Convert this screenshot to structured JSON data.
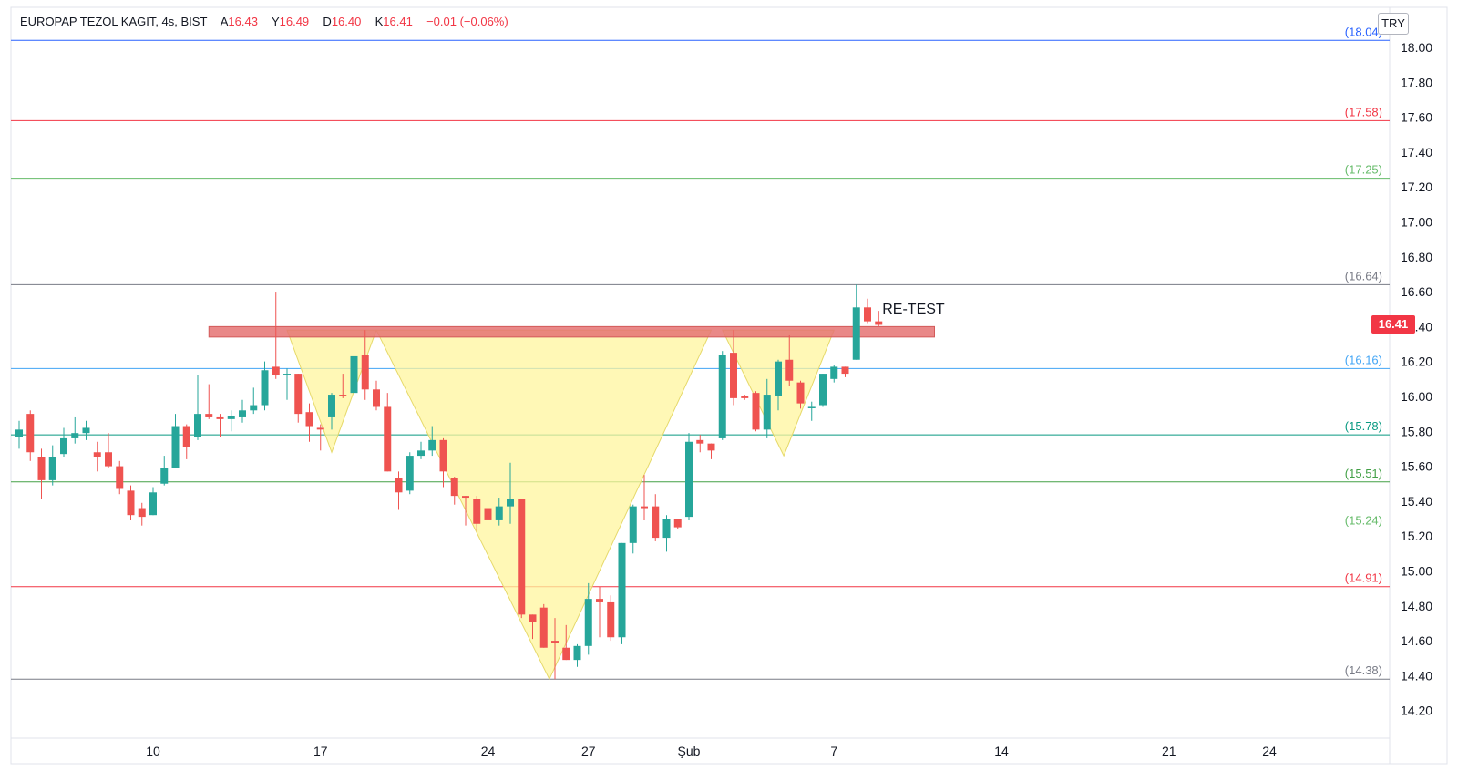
{
  "header": {
    "symbol": "EUROPAP TEZOL KAGIT, 4s, BIST",
    "open_label": "A",
    "open": "16.43",
    "high_label": "Y",
    "high": "16.49",
    "low_label": "D",
    "low": "16.40",
    "close_label": "K",
    "close": "16.41",
    "change": "−0.01 (−0.06%)"
  },
  "currency": "TRY",
  "last_price": "16.41",
  "colors": {
    "up": "#26a69a",
    "down": "#ef5350",
    "pattern_fill": "#fff59d",
    "resistance_band": "#e57373"
  },
  "chart_data": {
    "type": "candlestick",
    "ylim": [
      14.12,
      18.24
    ],
    "y_ticks": [
      "14.20",
      "14.40",
      "14.60",
      "14.80",
      "15.00",
      "15.20",
      "15.40",
      "15.60",
      "15.80",
      "16.00",
      "16.20",
      "16.40",
      "16.60",
      "16.80",
      "17.00",
      "17.20",
      "17.40",
      "17.60",
      "17.80",
      "18.00"
    ],
    "x_ticks": [
      {
        "label": "10",
        "index": 12
      },
      {
        "label": "17",
        "index": 27
      },
      {
        "label": "24",
        "index": 42
      },
      {
        "label": "27",
        "index": 51
      },
      {
        "label": "Şub",
        "index": 60
      },
      {
        "label": "7",
        "index": 73
      },
      {
        "label": "14",
        "index": 88
      },
      {
        "label": "21",
        "index": 103
      },
      {
        "label": "24",
        "index": 112
      }
    ],
    "levels": [
      {
        "value": 18.04,
        "label": "(18.04)",
        "color": "#2962ff"
      },
      {
        "value": 17.58,
        "label": "(17.58)",
        "color": "#f23645"
      },
      {
        "value": 17.25,
        "label": "(17.25)",
        "color": "#66bb6a"
      },
      {
        "value": 16.64,
        "label": "(16.64)",
        "color": "#787b86"
      },
      {
        "value": 16.16,
        "label": "(16.16)",
        "color": "#42a5f5"
      },
      {
        "value": 15.78,
        "label": "(15.78)",
        "color": "#089981"
      },
      {
        "value": 15.51,
        "label": "(15.51)",
        "color": "#43a047"
      },
      {
        "value": 15.24,
        "label": "(15.24)",
        "color": "#66bb6a"
      },
      {
        "value": 14.91,
        "label": "(14.91)",
        "color": "#f23645"
      },
      {
        "value": 14.38,
        "label": "(14.38)",
        "color": "#787b86"
      }
    ],
    "resistance_zone": {
      "from_index": 17,
      "to_index": 82,
      "low": 16.34,
      "high": 16.4
    },
    "pattern_triangles": [
      {
        "points": [
          [
            24,
            16.38
          ],
          [
            28,
            15.68
          ],
          [
            32,
            16.38
          ]
        ]
      },
      {
        "points": [
          [
            32,
            16.38
          ],
          [
            47.5,
            14.38
          ],
          [
            62,
            16.38
          ]
        ]
      },
      {
        "points": [
          [
            63,
            16.38
          ],
          [
            68.5,
            15.66
          ],
          [
            73,
            16.38
          ]
        ]
      }
    ],
    "annotations": [
      {
        "text": "RE-TEST",
        "index": 77,
        "value": 16.5
      }
    ],
    "candles": [
      {
        "o": 15.77,
        "h": 15.86,
        "l": 15.7,
        "c": 15.81
      },
      {
        "o": 15.9,
        "h": 15.92,
        "l": 15.63,
        "c": 15.68
      },
      {
        "o": 15.65,
        "h": 15.7,
        "l": 15.41,
        "c": 15.52
      },
      {
        "o": 15.52,
        "h": 15.72,
        "l": 15.49,
        "c": 15.65
      },
      {
        "o": 15.67,
        "h": 15.82,
        "l": 15.65,
        "c": 15.76
      },
      {
        "o": 15.76,
        "h": 15.88,
        "l": 15.73,
        "c": 15.79
      },
      {
        "o": 15.79,
        "h": 15.86,
        "l": 15.75,
        "c": 15.82
      },
      {
        "o": 15.68,
        "h": 15.74,
        "l": 15.57,
        "c": 15.65
      },
      {
        "o": 15.68,
        "h": 15.79,
        "l": 15.59,
        "c": 15.6
      },
      {
        "o": 15.6,
        "h": 15.63,
        "l": 15.44,
        "c": 15.47
      },
      {
        "o": 15.46,
        "h": 15.49,
        "l": 15.29,
        "c": 15.32
      },
      {
        "o": 15.36,
        "h": 15.39,
        "l": 15.26,
        "c": 15.31
      },
      {
        "o": 15.32,
        "h": 15.48,
        "l": 15.32,
        "c": 15.45
      },
      {
        "o": 15.5,
        "h": 15.66,
        "l": 15.49,
        "c": 15.59
      },
      {
        "o": 15.59,
        "h": 15.9,
        "l": 15.59,
        "c": 15.83
      },
      {
        "o": 15.83,
        "h": 15.84,
        "l": 15.64,
        "c": 15.71
      },
      {
        "o": 15.77,
        "h": 16.12,
        "l": 15.75,
        "c": 15.9
      },
      {
        "o": 15.9,
        "h": 16.07,
        "l": 15.87,
        "c": 15.88
      },
      {
        "o": 15.88,
        "h": 15.9,
        "l": 15.77,
        "c": 15.87
      },
      {
        "o": 15.87,
        "h": 15.92,
        "l": 15.8,
        "c": 15.89
      },
      {
        "o": 15.88,
        "h": 15.98,
        "l": 15.85,
        "c": 15.92
      },
      {
        "o": 15.92,
        "h": 16.05,
        "l": 15.9,
        "c": 15.95
      },
      {
        "o": 15.95,
        "h": 16.2,
        "l": 15.92,
        "c": 16.15
      },
      {
        "o": 16.17,
        "h": 16.6,
        "l": 16.1,
        "c": 16.12
      },
      {
        "o": 16.13,
        "h": 16.16,
        "l": 15.98,
        "c": 16.13
      },
      {
        "o": 16.13,
        "h": 16.13,
        "l": 15.85,
        "c": 15.9
      },
      {
        "o": 15.91,
        "h": 15.96,
        "l": 15.74,
        "c": 15.83
      },
      {
        "o": 15.82,
        "h": 15.84,
        "l": 15.69,
        "c": 15.81
      },
      {
        "o": 15.88,
        "h": 16.02,
        "l": 15.81,
        "c": 16.01
      },
      {
        "o": 16.01,
        "h": 16.13,
        "l": 15.99,
        "c": 16.0
      },
      {
        "o": 16.02,
        "h": 16.33,
        "l": 16.0,
        "c": 16.23
      },
      {
        "o": 16.24,
        "h": 16.38,
        "l": 15.98,
        "c": 16.04
      },
      {
        "o": 16.04,
        "h": 16.09,
        "l": 15.92,
        "c": 15.94
      },
      {
        "o": 15.94,
        "h": 16.02,
        "l": 15.57,
        "c": 15.57
      },
      {
        "o": 15.53,
        "h": 15.57,
        "l": 15.35,
        "c": 15.45
      },
      {
        "o": 15.46,
        "h": 15.68,
        "l": 15.44,
        "c": 15.66
      },
      {
        "o": 15.66,
        "h": 15.74,
        "l": 15.64,
        "c": 15.69
      },
      {
        "o": 15.69,
        "h": 15.83,
        "l": 15.66,
        "c": 15.75
      },
      {
        "o": 15.75,
        "h": 15.76,
        "l": 15.48,
        "c": 15.57
      },
      {
        "o": 15.53,
        "h": 15.54,
        "l": 15.38,
        "c": 15.43
      },
      {
        "o": 15.43,
        "h": 15.43,
        "l": 15.26,
        "c": 15.42
      },
      {
        "o": 15.41,
        "h": 15.43,
        "l": 15.23,
        "c": 15.27
      },
      {
        "o": 15.36,
        "h": 15.37,
        "l": 15.24,
        "c": 15.29
      },
      {
        "o": 15.29,
        "h": 15.42,
        "l": 15.26,
        "c": 15.37
      },
      {
        "o": 15.37,
        "h": 15.62,
        "l": 15.27,
        "c": 15.41
      },
      {
        "o": 15.41,
        "h": 15.41,
        "l": 14.73,
        "c": 14.75
      },
      {
        "o": 14.75,
        "h": 14.75,
        "l": 14.61,
        "c": 14.71
      },
      {
        "o": 14.79,
        "h": 14.81,
        "l": 14.56,
        "c": 14.56
      },
      {
        "o": 14.6,
        "h": 14.73,
        "l": 14.38,
        "c": 14.59
      },
      {
        "o": 14.56,
        "h": 14.69,
        "l": 14.49,
        "c": 14.49
      },
      {
        "o": 14.49,
        "h": 14.58,
        "l": 14.45,
        "c": 14.57
      },
      {
        "o": 14.57,
        "h": 14.93,
        "l": 14.52,
        "c": 14.84
      },
      {
        "o": 14.84,
        "h": 14.91,
        "l": 14.62,
        "c": 14.82
      },
      {
        "o": 14.82,
        "h": 14.86,
        "l": 14.6,
        "c": 14.62
      },
      {
        "o": 14.62,
        "h": 15.16,
        "l": 14.58,
        "c": 15.16
      },
      {
        "o": 15.16,
        "h": 15.38,
        "l": 15.1,
        "c": 15.37
      },
      {
        "o": 15.37,
        "h": 15.55,
        "l": 15.29,
        "c": 15.36
      },
      {
        "o": 15.37,
        "h": 15.44,
        "l": 15.17,
        "c": 15.19
      },
      {
        "o": 15.19,
        "h": 15.32,
        "l": 15.11,
        "c": 15.3
      },
      {
        "o": 15.3,
        "h": 15.3,
        "l": 15.24,
        "c": 15.25
      },
      {
        "o": 15.31,
        "h": 15.79,
        "l": 15.29,
        "c": 15.74
      },
      {
        "o": 15.75,
        "h": 15.78,
        "l": 15.68,
        "c": 15.73
      },
      {
        "o": 15.73,
        "h": 15.73,
        "l": 15.64,
        "c": 15.69
      },
      {
        "o": 15.76,
        "h": 16.26,
        "l": 15.75,
        "c": 16.24
      },
      {
        "o": 16.25,
        "h": 16.38,
        "l": 15.95,
        "c": 15.99
      },
      {
        "o": 16.0,
        "h": 16.01,
        "l": 15.98,
        "c": 15.99
      },
      {
        "o": 16.02,
        "h": 16.03,
        "l": 15.8,
        "c": 15.81
      },
      {
        "o": 15.81,
        "h": 16.1,
        "l": 15.76,
        "c": 16.01
      },
      {
        "o": 16.0,
        "h": 16.21,
        "l": 15.92,
        "c": 16.2
      },
      {
        "o": 16.21,
        "h": 16.35,
        "l": 16.06,
        "c": 16.09
      },
      {
        "o": 16.08,
        "h": 16.09,
        "l": 15.93,
        "c": 15.96
      },
      {
        "o": 15.94,
        "h": 15.97,
        "l": 15.86,
        "c": 15.94
      },
      {
        "o": 15.95,
        "h": 16.13,
        "l": 15.94,
        "c": 16.13
      },
      {
        "o": 16.1,
        "h": 16.18,
        "l": 16.08,
        "c": 16.17
      },
      {
        "o": 16.17,
        "h": 16.17,
        "l": 16.11,
        "c": 16.13
      },
      {
        "o": 16.21,
        "h": 16.64,
        "l": 16.21,
        "c": 16.51
      },
      {
        "o": 16.51,
        "h": 16.56,
        "l": 16.42,
        "c": 16.43
      },
      {
        "o": 16.43,
        "h": 16.49,
        "l": 16.4,
        "c": 16.41
      }
    ]
  }
}
